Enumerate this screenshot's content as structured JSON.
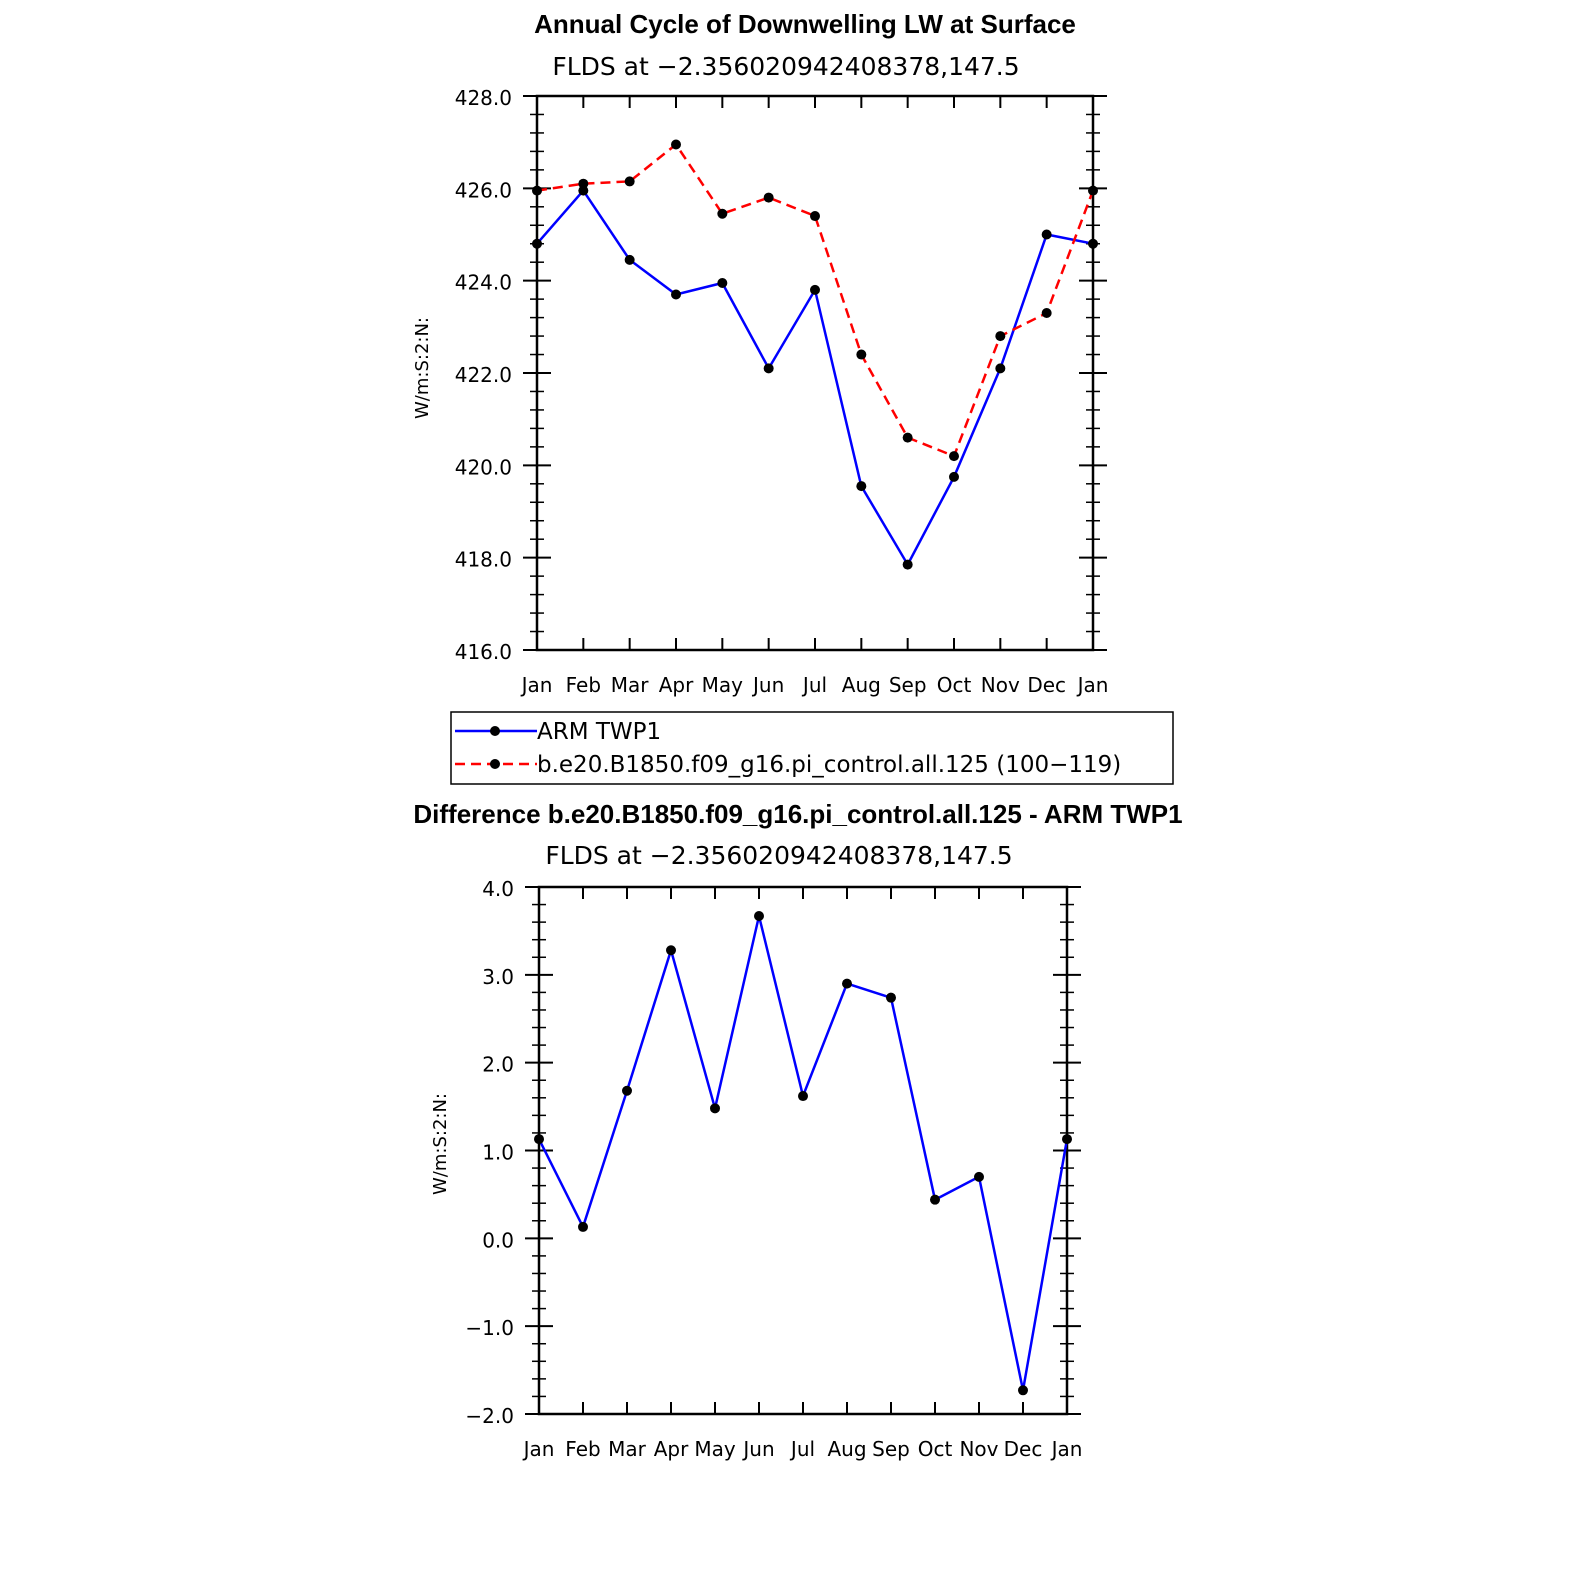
{
  "chart_data": [
    {
      "type": "line",
      "title": "Annual Cycle of Downwelling LW at Surface",
      "subtitle": "FLDS at −2.356020942408378,147.5",
      "xlabel": "",
      "ylabel": "W/m:S:2:N:",
      "categories": [
        "Jan",
        "Feb",
        "Mar",
        "Apr",
        "May",
        "Jun",
        "Jul",
        "Aug",
        "Sep",
        "Oct",
        "Nov",
        "Dec",
        "Jan"
      ],
      "ylim": [
        416.0,
        428.0
      ],
      "yticks": [
        "416.0",
        "418.0",
        "420.0",
        "422.0",
        "424.0",
        "426.0",
        "428.0"
      ],
      "yticks_values": [
        416,
        418,
        420,
        422,
        424,
        426,
        428
      ],
      "series": [
        {
          "name": "ARM TWP1",
          "color": "#0000ff",
          "dash": "solid",
          "values": [
            424.8,
            425.95,
            424.45,
            423.7,
            423.95,
            422.1,
            423.8,
            419.55,
            417.85,
            419.75,
            422.1,
            425.0,
            424.8
          ]
        },
        {
          "name": "b.e20.B1850.f09_g16.pi_control.all.125 (100−119)",
          "color": "#ff0000",
          "dash": "dashed",
          "values": [
            425.95,
            426.1,
            426.15,
            426.95,
            425.45,
            425.8,
            425.4,
            422.4,
            420.6,
            420.2,
            422.8,
            423.3,
            425.95
          ]
        }
      ],
      "legend_placement": "bottom",
      "grid": false
    },
    {
      "type": "line",
      "title": "Difference b.e20.B1850.f09_g16.pi_control.all.125 - ARM TWP1",
      "subtitle": "FLDS at −2.356020942408378,147.5",
      "xlabel": "",
      "ylabel": "W/m:S:2:N:",
      "categories": [
        "Jan",
        "Feb",
        "Mar",
        "Apr",
        "May",
        "Jun",
        "Jul",
        "Aug",
        "Sep",
        "Oct",
        "Nov",
        "Dec",
        "Jan"
      ],
      "ylim": [
        -2.0,
        4.0
      ],
      "yticks": [
        "−2.0",
        "−1.0",
        "0.0",
        "1.0",
        "2.0",
        "3.0",
        "4.0"
      ],
      "yticks_values": [
        -2,
        -1,
        0,
        1,
        2,
        3,
        4
      ],
      "series": [
        {
          "color": "#0000ff",
          "dash": "solid",
          "values": [
            1.13,
            0.13,
            1.68,
            3.28,
            1.48,
            3.67,
            1.62,
            2.9,
            2.74,
            0.44,
            0.7,
            -1.73,
            1.13
          ]
        }
      ],
      "grid": false
    }
  ]
}
